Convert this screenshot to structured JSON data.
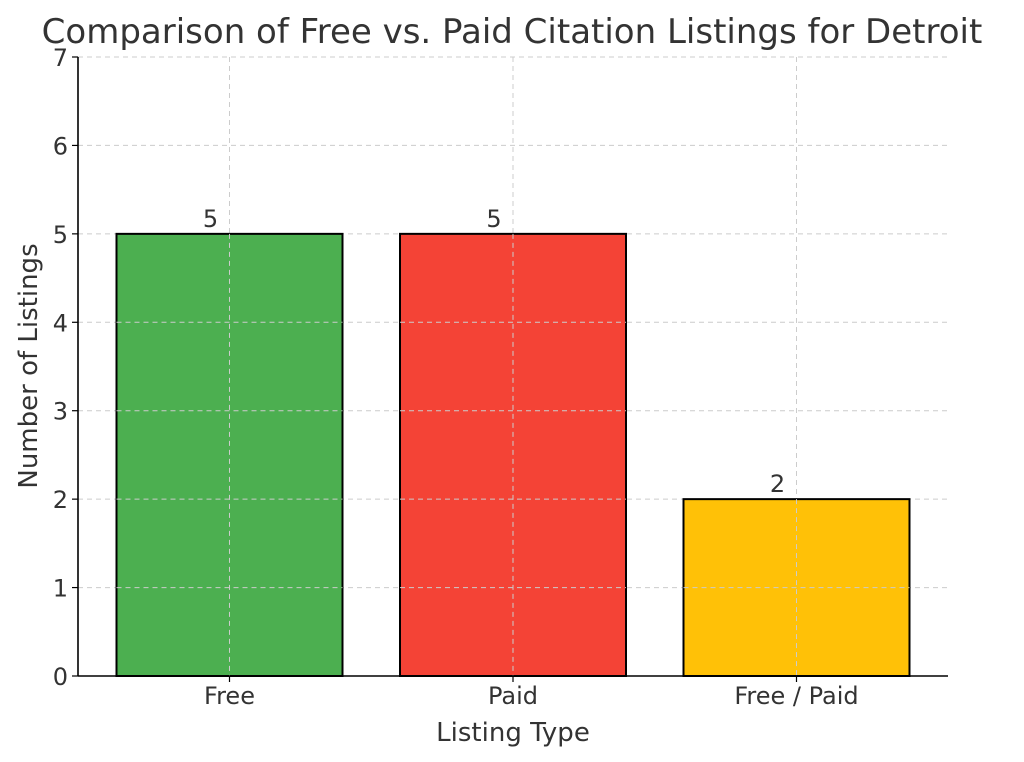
{
  "chart_data": {
    "type": "bar",
    "title": "Comparison of Free vs. Paid Citation Listings for Detroit",
    "xlabel": "Listing Type",
    "ylabel": "Number of Listings",
    "categories": [
      "Free",
      "Paid",
      "Free / Paid"
    ],
    "values": [
      5,
      5,
      2
    ],
    "data_labels": [
      "5",
      "5",
      "2"
    ],
    "colors": [
      "#4caf50",
      "#f44336",
      "#ffc107"
    ],
    "ylim": [
      0,
      7
    ],
    "yticks": [
      "0",
      "1",
      "2",
      "3",
      "4",
      "5",
      "6",
      "7"
    ],
    "grid": true
  }
}
